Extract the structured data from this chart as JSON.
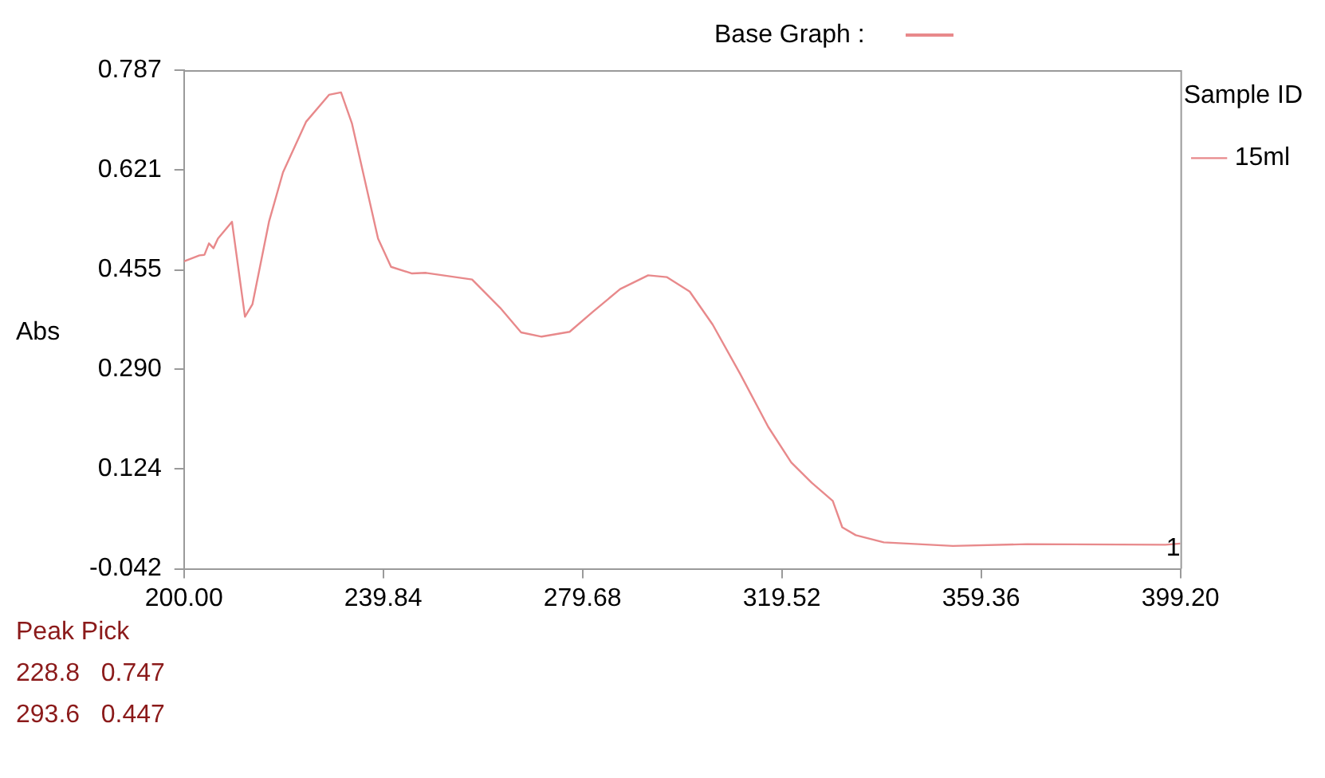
{
  "chart_data": {
    "type": "line",
    "ylabel": "Abs",
    "legend_title": "Sample ID",
    "legend": "top right",
    "marker": "none",
    "x": [
      200,
      203.1,
      204.1,
      205.0,
      205.9,
      206.8,
      209.6,
      212.2,
      213.7,
      217.0,
      219.8,
      224.4,
      229.0,
      231.4,
      233.6,
      238.8,
      241.4,
      245.6,
      248.4,
      257.6,
      263.2,
      267.4,
      271.5,
      277.1,
      281.7,
      287.2,
      292.8,
      296.5,
      301.1,
      305.7,
      311.2,
      316.8,
      321.4,
      325.5,
      329.7,
      331.6,
      334.3,
      339.9,
      353.7,
      368.5,
      396.2,
      399.2
    ],
    "series": [
      {
        "name": "15ml",
        "color": "#e8898b",
        "values": [
          0.469,
          0.479,
          0.48,
          0.499,
          0.491,
          0.507,
          0.535,
          0.377,
          0.398,
          0.535,
          0.617,
          0.701,
          0.746,
          0.75,
          0.698,
          0.507,
          0.46,
          0.449,
          0.45,
          0.439,
          0.392,
          0.351,
          0.344,
          0.352,
          0.385,
          0.423,
          0.446,
          0.443,
          0.419,
          0.364,
          0.282,
          0.194,
          0.135,
          0.101,
          0.071,
          0.027,
          0.014,
          0.002,
          -0.004,
          -0.001,
          -0.002,
          0.0
        ]
      }
    ],
    "xlim": [
      200,
      399.2
    ],
    "xticks": [
      {
        "value": 200,
        "label": "200.00"
      },
      {
        "value": 239.84,
        "label": "239.84"
      },
      {
        "value": 279.68,
        "label": "279.68"
      },
      {
        "value": 319.52,
        "label": "319.52"
      },
      {
        "value": 359.36,
        "label": "359.36"
      },
      {
        "value": 399.2,
        "label": "399.20"
      }
    ],
    "ylim": [
      -0.042,
      0.787
    ],
    "yticks": [
      {
        "value": -0.042,
        "label": "-0.042"
      },
      {
        "value": 0.124,
        "label": "0.124"
      },
      {
        "value": 0.29,
        "label": "0.290"
      },
      {
        "value": 0.455,
        "label": "0.455"
      },
      {
        "value": 0.621,
        "label": "0.621"
      },
      {
        "value": 0.787,
        "label": "0.787"
      }
    ],
    "annotations": [
      "Base Graph :",
      "Peak Pick",
      "228.8   0.747",
      "293.6   0.447",
      {
        "text": "1",
        "x": 399.2,
        "y": 0.0
      }
    ]
  }
}
